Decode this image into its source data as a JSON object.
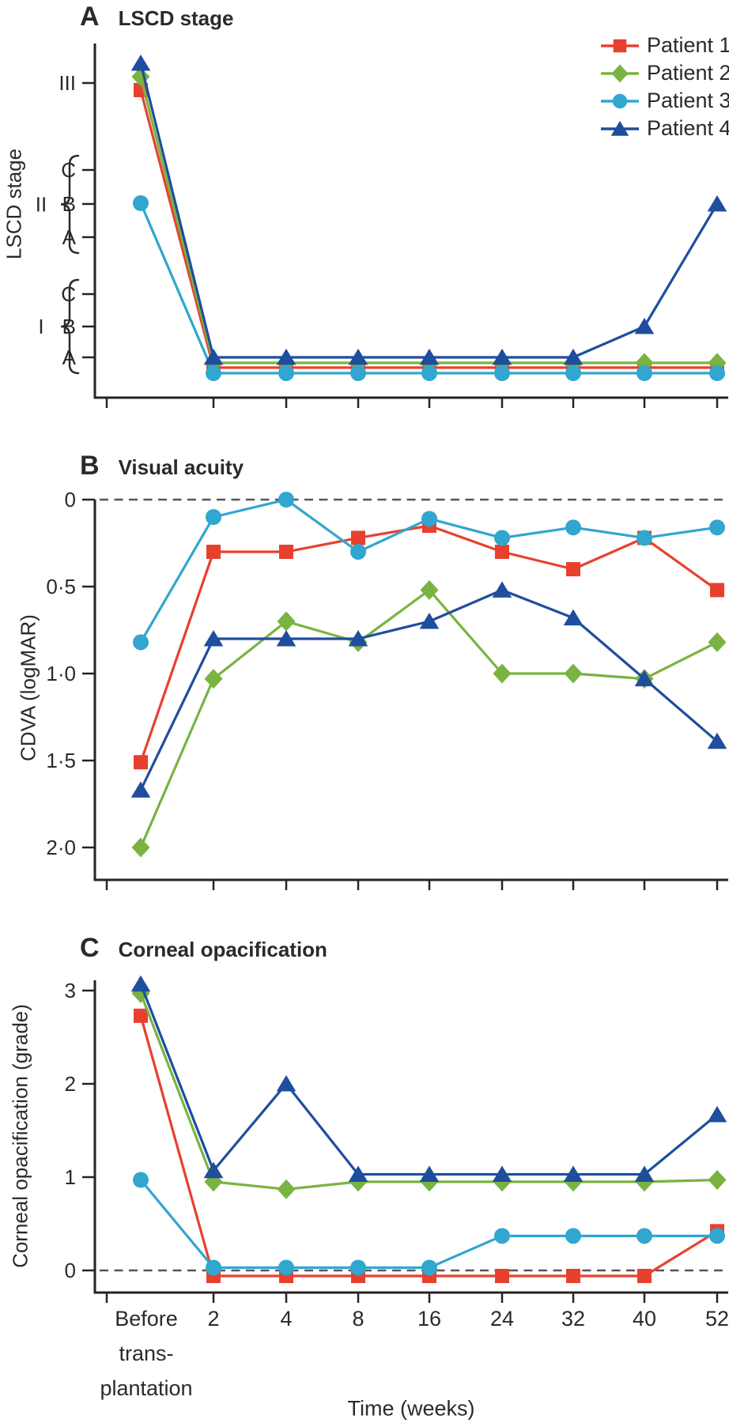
{
  "figure": {
    "background_color": "#ffffff",
    "text_color": "#2b2a29",
    "axis_color": "#262324",
    "dashed_line_color": "#55565a"
  },
  "legend": {
    "items": [
      {
        "label": "Patient 1",
        "marker": "square",
        "color": "#e8402f"
      },
      {
        "label": "Patient 2",
        "marker": "diamond",
        "color": "#79b342"
      },
      {
        "label": "Patient 3",
        "marker": "circle",
        "color": "#31a6ce"
      },
      {
        "label": "Patient 4",
        "marker": "triangle",
        "color": "#1e4e9d"
      }
    ]
  },
  "x_axis": {
    "title": "Time (weeks)",
    "tick_labels": [
      {
        "lines": [
          "Before",
          "trans-",
          "plantation"
        ]
      },
      {
        "lines": [
          "2"
        ]
      },
      {
        "lines": [
          "4"
        ]
      },
      {
        "lines": [
          "8"
        ]
      },
      {
        "lines": [
          "16"
        ]
      },
      {
        "lines": [
          "24"
        ]
      },
      {
        "lines": [
          "32"
        ]
      },
      {
        "lines": [
          "40"
        ]
      },
      {
        "lines": [
          "52"
        ]
      }
    ]
  },
  "chart_data": [
    {
      "type": "line",
      "panel_letter": "A",
      "title": "LSCD stage",
      "ylabel": "LSCD stage",
      "x_categories": [
        "Before transplantation",
        "2",
        "4",
        "8",
        "16",
        "24",
        "32",
        "40",
        "52"
      ],
      "y_axis": {
        "type": "categorical",
        "ticks": [
          {
            "label": "III",
            "stage": "III"
          },
          {
            "label": "C",
            "stage": "IIC"
          },
          {
            "label": "B",
            "stage": "IIB"
          },
          {
            "label": "A",
            "stage": "IIA"
          },
          {
            "label": "C",
            "stage": "IC"
          },
          {
            "label": "B",
            "stage": "IB"
          },
          {
            "label": "A",
            "stage": "IA"
          }
        ],
        "groups": [
          {
            "label": "II",
            "from": "IIC",
            "to": "IIA"
          },
          {
            "label": "I",
            "from": "IC",
            "to": "IA"
          }
        ]
      },
      "series": [
        {
          "name": "Patient 1",
          "stages": [
            "III",
            "IA",
            "IA",
            "IA",
            "IA",
            "IA",
            "IA",
            "IA",
            "IA"
          ]
        },
        {
          "name": "Patient 2",
          "stages": [
            "III",
            "IA",
            "IA",
            "IA",
            "IA",
            "IA",
            "IA",
            "IA",
            "IA"
          ]
        },
        {
          "name": "Patient 3",
          "stages": [
            "IIB",
            "IA",
            "IA",
            "IA",
            "IA",
            "IA",
            "IA",
            "IA",
            "IA"
          ]
        },
        {
          "name": "Patient 4",
          "stages": [
            "III",
            "IA",
            "IA",
            "IA",
            "IA",
            "IA",
            "IA",
            "IB",
            "IIB"
          ]
        }
      ]
    },
    {
      "type": "line",
      "panel_letter": "B",
      "title": "Visual acuity",
      "ylabel": "CDVA (logMAR)",
      "x_categories": [
        "Before transplantation",
        "2",
        "4",
        "8",
        "16",
        "24",
        "32",
        "40",
        "52"
      ],
      "y_axis": {
        "type": "linear",
        "inverted": true,
        "range": [
          0,
          2
        ],
        "zero_dashed_line": true,
        "ticks": [
          {
            "label": "0",
            "value": 0
          },
          {
            "label": "0·5",
            "value": 0.5
          },
          {
            "label": "1·0",
            "value": 1.0
          },
          {
            "label": "1·5",
            "value": 1.5
          },
          {
            "label": "2·0",
            "value": 2.0
          }
        ]
      },
      "series": [
        {
          "name": "Patient 1",
          "values": [
            1.51,
            0.3,
            0.3,
            0.22,
            0.15,
            0.3,
            0.4,
            0.22,
            0.52
          ]
        },
        {
          "name": "Patient 2",
          "values": [
            2.0,
            1.03,
            0.7,
            0.82,
            0.52,
            1.0,
            1.0,
            1.03,
            0.82
          ]
        },
        {
          "name": "Patient 3",
          "values": [
            0.82,
            0.1,
            0.0,
            0.3,
            0.11,
            0.22,
            0.16,
            0.22,
            0.16
          ]
        },
        {
          "name": "Patient 4",
          "values": [
            1.67,
            0.8,
            0.8,
            0.8,
            0.7,
            0.52,
            0.68,
            1.03,
            1.39
          ]
        }
      ]
    },
    {
      "type": "line",
      "panel_letter": "C",
      "title": "Corneal opacification",
      "ylabel": "Corneal opacification (grade)",
      "x_categories": [
        "Before transplantation",
        "2",
        "4",
        "8",
        "16",
        "24",
        "32",
        "40",
        "52"
      ],
      "y_axis": {
        "type": "linear",
        "inverted": false,
        "range": [
          0,
          3
        ],
        "zero_dashed_line": true,
        "ticks": [
          {
            "label": "3",
            "value": 3
          },
          {
            "label": "2",
            "value": 2
          },
          {
            "label": "1",
            "value": 1
          },
          {
            "label": "0",
            "value": 0
          }
        ]
      },
      "series": [
        {
          "name": "Patient 1",
          "values": [
            2.73,
            0.0,
            0.0,
            0.0,
            0.0,
            0.0,
            0.0,
            0.0,
            0.48
          ]
        },
        {
          "name": "Patient 2",
          "values": [
            2.97,
            0.95,
            0.87,
            0.95,
            0.95,
            0.95,
            0.95,
            0.95,
            0.97
          ]
        },
        {
          "name": "Patient 3",
          "values": [
            0.97,
            0.03,
            0.03,
            0.03,
            0.03,
            0.37,
            0.37,
            0.37,
            0.37
          ]
        },
        {
          "name": "Patient 4",
          "values": [
            3.07,
            1.07,
            2.0,
            1.03,
            1.03,
            1.03,
            1.03,
            1.03,
            1.67
          ]
        }
      ]
    }
  ]
}
